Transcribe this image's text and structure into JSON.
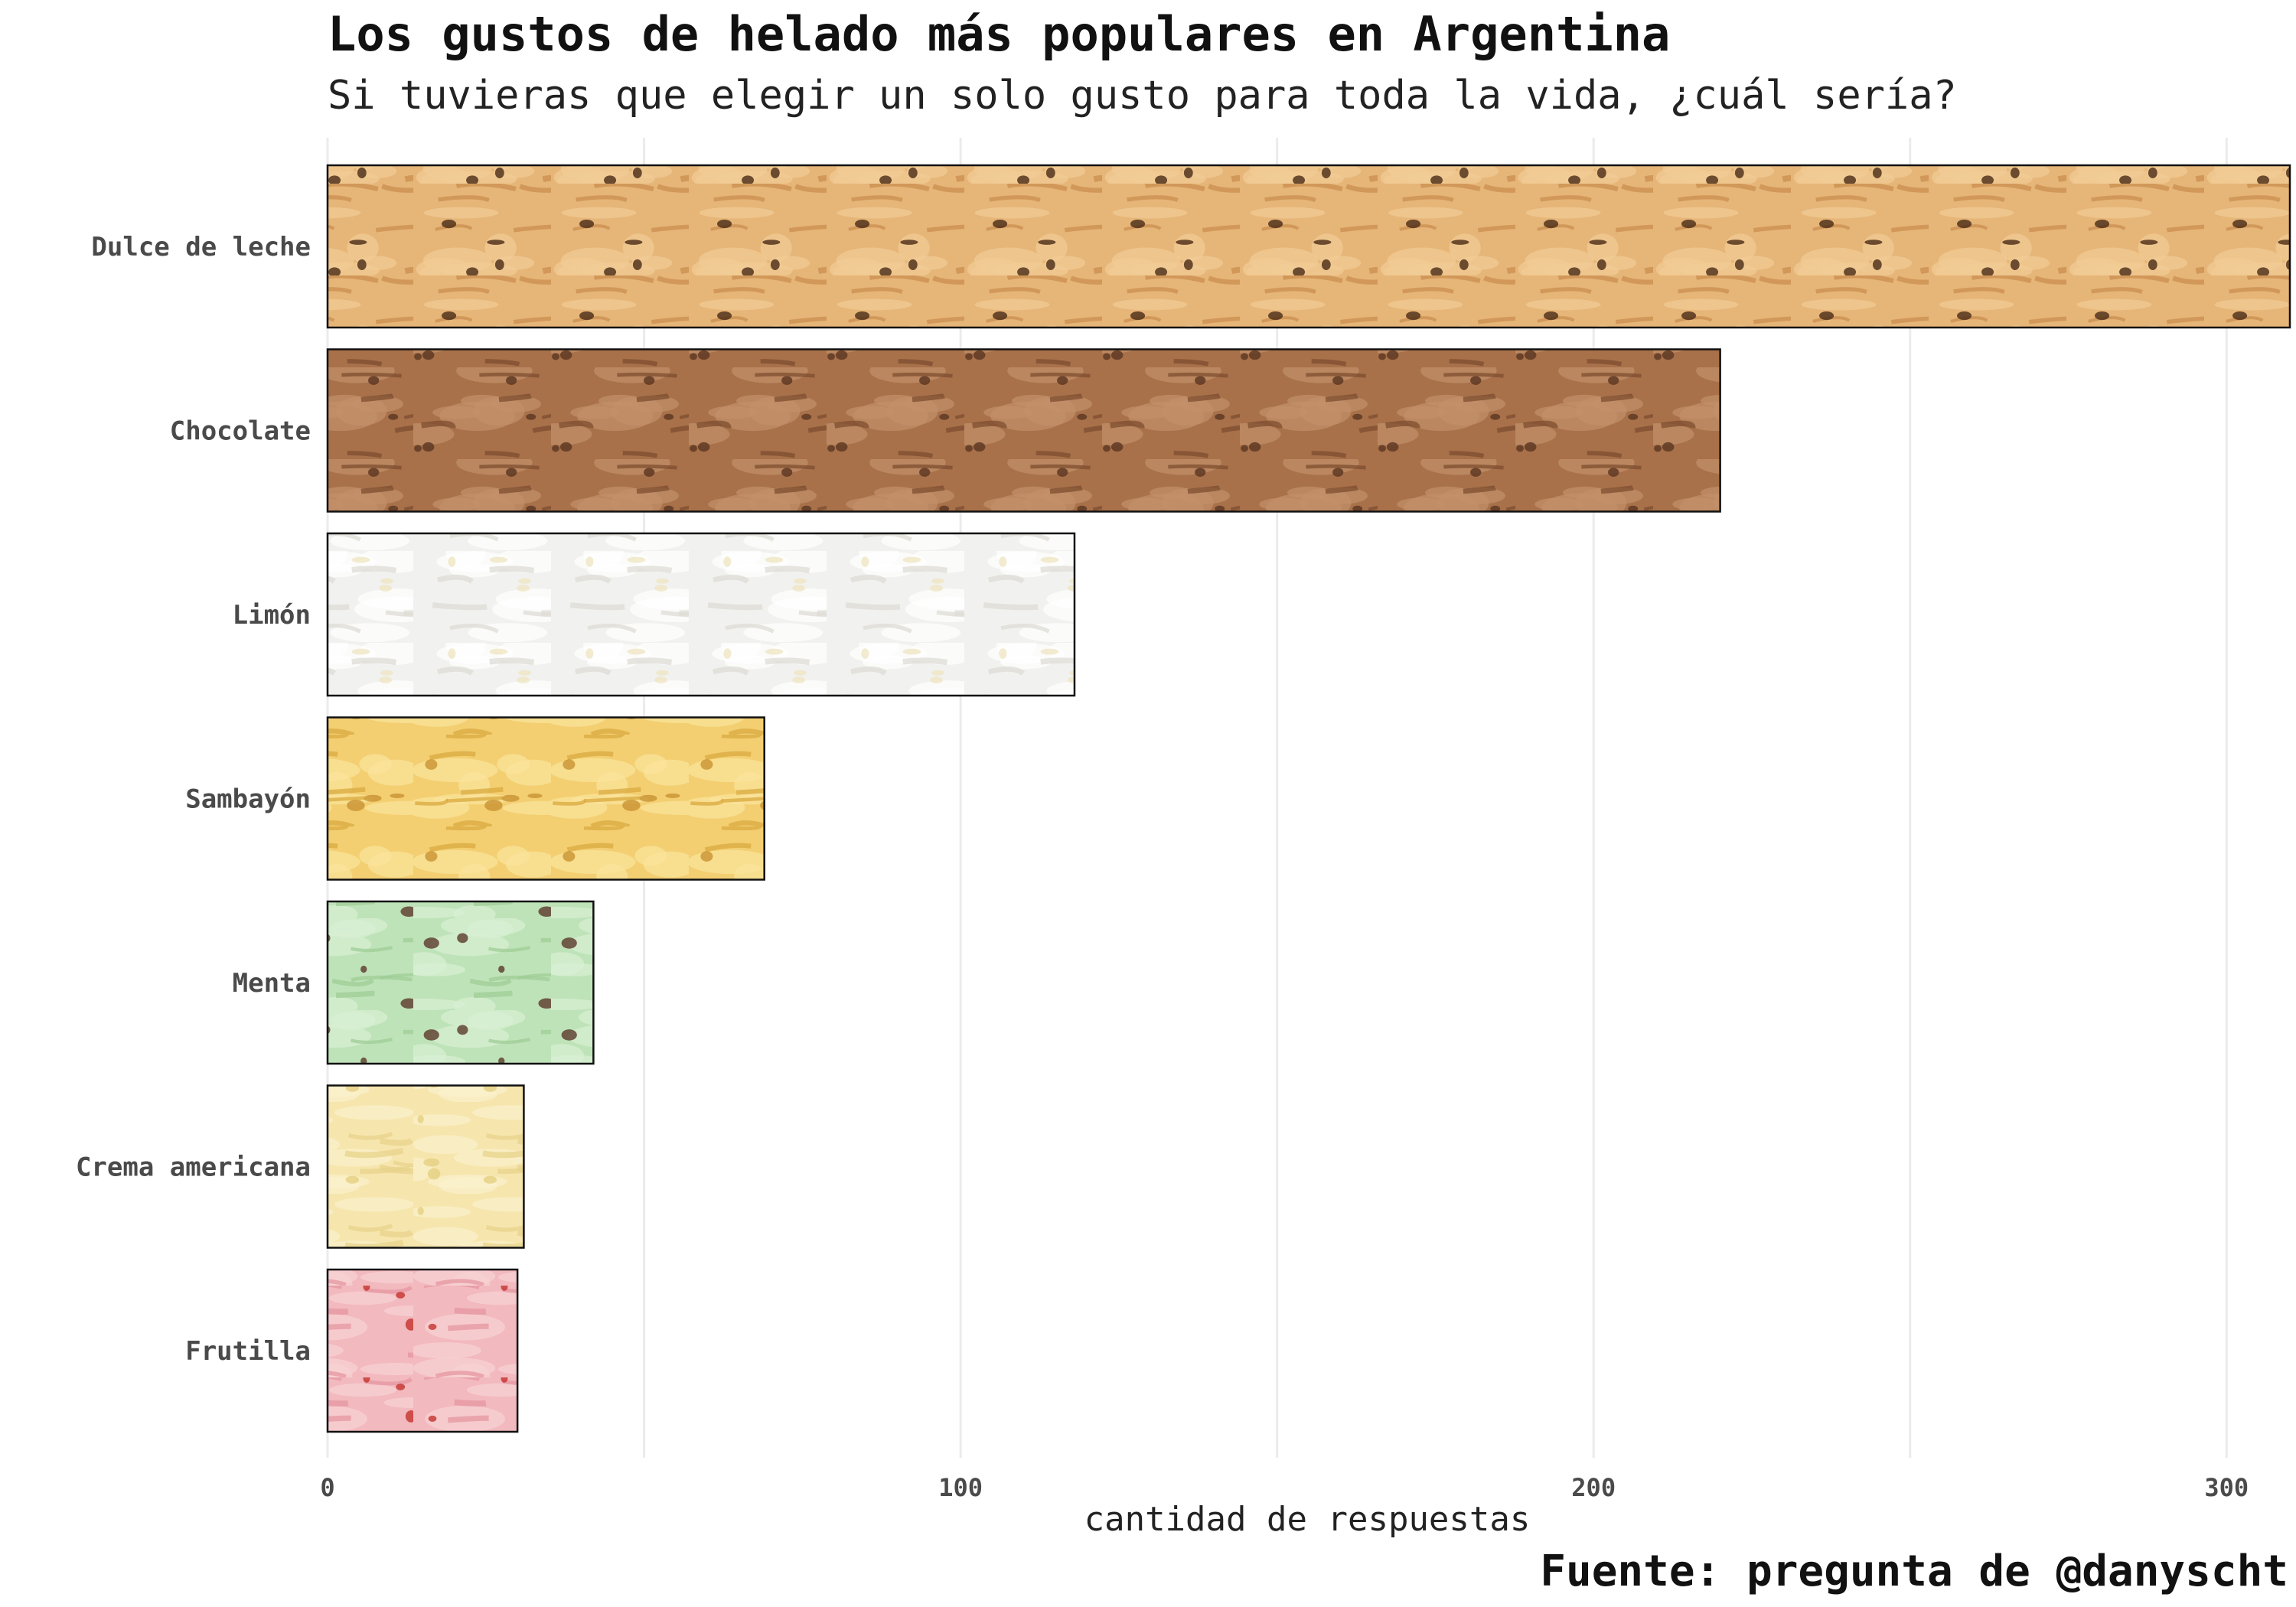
{
  "chart_data": {
    "type": "bar",
    "orientation": "horizontal",
    "title": "Los gustos de helado más populares en Argentina",
    "subtitle": "Si tuvieras que elegir un solo gusto para toda la vida, ¿cuál sería?",
    "xlabel": "cantidad de respuestas",
    "ylabel": "",
    "caption": "Fuente: pregunta de @danyscht",
    "categories": [
      "Dulce de leche",
      "Chocolate",
      "Limón",
      "Sambayón",
      "Menta",
      "Crema americana",
      "Frutilla"
    ],
    "values": [
      310,
      220,
      118,
      69,
      42,
      31,
      30
    ],
    "xlim": [
      0,
      310
    ],
    "xticks": [
      "0",
      "100",
      "200",
      "300"
    ],
    "xtick_values": [
      0,
      100,
      200,
      300
    ],
    "grid": true,
    "bar_textures": [
      {
        "base": "#e6b578",
        "shade": "#c98e4f",
        "light": "#f1cc95",
        "speck": "#4a2c17"
      },
      {
        "base": "#a8714a",
        "shade": "#7d4d2f",
        "light": "#c4906a",
        "speck": "#5a3520"
      },
      {
        "base": "#f1f1ef",
        "shade": "#dedcd5",
        "light": "#ffffff",
        "speck": "#f0e6c3"
      },
      {
        "base": "#f3cf72",
        "shade": "#d9a93e",
        "light": "#fbe49c",
        "speck": "#c89432"
      },
      {
        "base": "#bfe3b9",
        "shade": "#9fcd97",
        "light": "#d9f0d3",
        "speck": "#5b3a2a"
      },
      {
        "base": "#f6e6ae",
        "shade": "#e8d28a",
        "light": "#fbf1cc",
        "speck": "#e5cf82"
      },
      {
        "base": "#f2b9be",
        "shade": "#e596a0",
        "light": "#f9d3d5",
        "speck": "#c4332d"
      }
    ]
  }
}
